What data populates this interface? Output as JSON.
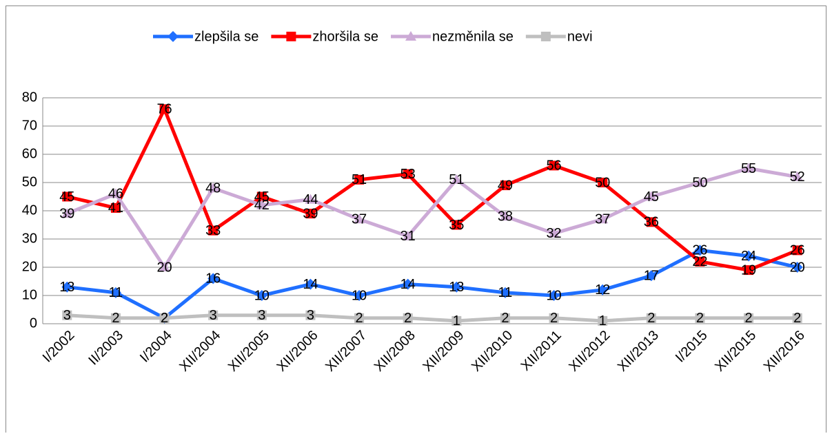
{
  "chart_data": {
    "type": "line",
    "categories": [
      "I/2002",
      "II/2003",
      "I/2004",
      "XII/2004",
      "XII/2005",
      "XII/2006",
      "XII/2007",
      "XII/2008",
      "XII/2009",
      "XII/2010",
      "XII/2011",
      "XII/2012",
      "XII/2013",
      "I/2015",
      "XII/2015",
      "XII/2016"
    ],
    "series": [
      {
        "name": "zlepšila se",
        "color": "#1f6fff",
        "marker": "diamond",
        "values": [
          13,
          11,
          2,
          16,
          10,
          14,
          10,
          14,
          13,
          11,
          10,
          12,
          17,
          26,
          24,
          20
        ]
      },
      {
        "name": "zhoršila se",
        "color": "#ff0000",
        "marker": "square",
        "values": [
          45,
          41,
          76,
          33,
          45,
          39,
          51,
          53,
          35,
          49,
          56,
          50,
          36,
          22,
          19,
          26
        ]
      },
      {
        "name": "nezměnila se",
        "color": "#ccaad6",
        "marker": "triangle",
        "values": [
          39,
          46,
          20,
          48,
          42,
          44,
          37,
          31,
          51,
          38,
          32,
          37,
          45,
          50,
          55,
          52
        ]
      },
      {
        "name": "nevi",
        "color": "#bfbfbf",
        "marker": "square",
        "values": [
          3,
          2,
          2,
          3,
          3,
          3,
          2,
          2,
          1,
          2,
          2,
          1,
          2,
          2,
          2,
          2
        ]
      }
    ],
    "ylim": [
      0,
      80
    ],
    "yticks": [
      0,
      10,
      20,
      30,
      40,
      50,
      60,
      70,
      80
    ],
    "grid": true,
    "legend": "top"
  }
}
